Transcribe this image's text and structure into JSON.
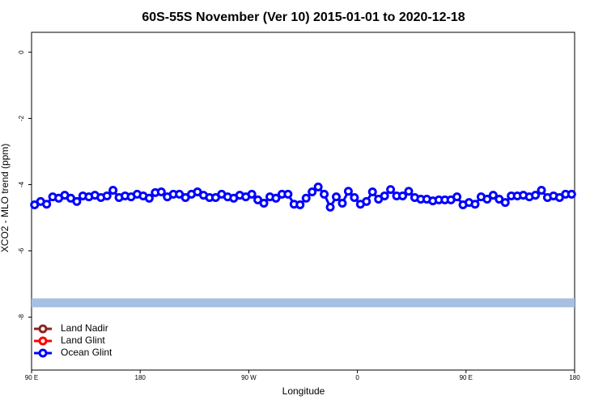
{
  "chart_data": {
    "type": "line",
    "title": "60S-55S November (Ver 10)   2015-01-01 to 2020-12-18",
    "xlabel": "Longitude",
    "ylabel": "XCO2 - MLO trend (ppm)",
    "xlim": [
      90,
      540
    ],
    "ylim": [
      -9.6,
      0.6
    ],
    "xticks": [
      {
        "value": 90,
        "label": "90 E"
      },
      180,
      {
        "value": 270,
        "label": "90 W"
      },
      {
        "value": 360,
        "label": "0"
      },
      {
        "value": 450,
        "label": "90 E"
      },
      {
        "value": 540,
        "label": "180"
      }
    ],
    "yticks": [
      0,
      -2,
      -4,
      -6,
      -8
    ],
    "legend": "bottom-left",
    "band": {
      "value": -7.57,
      "color": "#a7bfe0"
    },
    "x": [
      92.5,
      97.5,
      102.5,
      107.5,
      112.5,
      117.5,
      122.5,
      127.5,
      132.5,
      137.5,
      142.5,
      147.5,
      152.5,
      157.5,
      162.5,
      167.5,
      172.5,
      177.5,
      182.5,
      187.5,
      192.5,
      197.5,
      202.5,
      207.5,
      212.5,
      217.5,
      222.5,
      227.5,
      232.5,
      237.5,
      242.5,
      247.5,
      252.5,
      257.5,
      262.5,
      267.5,
      272.5,
      277.5,
      282.5,
      287.5,
      292.5,
      297.5,
      302.5,
      307.5,
      312.5,
      317.5,
      322.5,
      327.5,
      332.5,
      337.5,
      342.5,
      347.5,
      352.5,
      357.5,
      362.5,
      367.5,
      372.5,
      377.5,
      382.5,
      387.5,
      392.5,
      397.5,
      402.5,
      407.5,
      412.5,
      417.5,
      422.5,
      427.5,
      432.5,
      437.5,
      442.5,
      447.5,
      452.5,
      457.5,
      462.5,
      467.5,
      472.5,
      477.5,
      482.5,
      487.5,
      492.5,
      497.5,
      502.5,
      507.5,
      512.5,
      517.5,
      522.5,
      527.5,
      532.5,
      537.5
    ],
    "series": [
      {
        "name": "Land Nadir",
        "color": "#8b2323",
        "values": [
          null,
          null,
          null,
          null,
          null,
          null,
          null,
          null,
          null,
          null,
          null,
          null,
          null,
          null,
          null,
          null,
          null,
          null,
          null,
          null,
          null,
          null,
          null,
          null,
          null,
          null,
          null,
          null,
          null,
          null,
          null,
          null,
          null,
          null,
          null,
          null,
          null,
          null,
          null,
          null,
          null,
          null,
          null,
          null,
          null,
          null,
          null,
          null,
          null,
          null,
          null,
          null,
          null,
          null,
          null,
          null,
          null,
          null,
          null,
          null,
          null,
          null,
          null,
          null,
          null,
          null,
          null,
          null,
          null,
          null,
          null,
          null,
          null,
          null,
          null,
          null,
          null,
          null,
          null,
          null,
          null,
          null,
          null,
          null,
          null,
          null,
          null,
          null,
          null,
          null
        ]
      },
      {
        "name": "Land Glint",
        "color": "#ff0000",
        "values": [
          null,
          null,
          null,
          null,
          null,
          null,
          null,
          null,
          null,
          null,
          null,
          null,
          null,
          null,
          null,
          null,
          null,
          null,
          null,
          null,
          null,
          null,
          null,
          null,
          null,
          null,
          null,
          null,
          null,
          null,
          null,
          null,
          null,
          null,
          null,
          null,
          null,
          null,
          null,
          null,
          null,
          null,
          null,
          null,
          null,
          null,
          null,
          null,
          null,
          null,
          null,
          null,
          null,
          null,
          null,
          null,
          null,
          null,
          null,
          null,
          null,
          null,
          null,
          null,
          null,
          null,
          null,
          null,
          null,
          null,
          null,
          null,
          null,
          null,
          null,
          null,
          null,
          null,
          null,
          null,
          null,
          null,
          null,
          null,
          null,
          null,
          null,
          null,
          null,
          null
        ]
      },
      {
        "name": "Ocean Glint",
        "color": "#0000ff",
        "values": [
          -4.61,
          -4.51,
          -4.59,
          -4.37,
          -4.41,
          -4.32,
          -4.41,
          -4.51,
          -4.34,
          -4.37,
          -4.32,
          -4.39,
          -4.34,
          -4.17,
          -4.39,
          -4.34,
          -4.37,
          -4.29,
          -4.34,
          -4.41,
          -4.24,
          -4.22,
          -4.37,
          -4.29,
          -4.29,
          -4.39,
          -4.29,
          -4.22,
          -4.32,
          -4.39,
          -4.39,
          -4.29,
          -4.37,
          -4.41,
          -4.32,
          -4.37,
          -4.29,
          -4.46,
          -4.56,
          -4.37,
          -4.41,
          -4.29,
          -4.29,
          -4.59,
          -4.61,
          -4.41,
          -4.22,
          -4.07,
          -4.29,
          -4.68,
          -4.37,
          -4.56,
          -4.2,
          -4.39,
          -4.59,
          -4.51,
          -4.22,
          -4.44,
          -4.34,
          -4.15,
          -4.34,
          -4.34,
          -4.2,
          -4.39,
          -4.44,
          -4.44,
          -4.49,
          -4.46,
          -4.46,
          -4.46,
          -4.37,
          -4.61,
          -4.54,
          -4.59,
          -4.37,
          -4.44,
          -4.32,
          -4.44,
          -4.54,
          -4.34,
          -4.34,
          -4.32,
          -4.37,
          -4.32,
          -4.17,
          -4.39,
          -4.34,
          -4.39,
          -4.29,
          -4.29
        ]
      }
    ]
  }
}
